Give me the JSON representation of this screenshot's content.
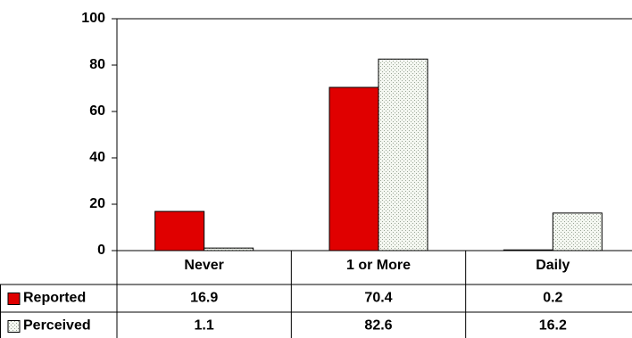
{
  "chart_data": {
    "type": "bar",
    "categories": [
      "Never",
      "1 or More",
      "Daily"
    ],
    "series": [
      {
        "name": "Reported",
        "values": [
          16.9,
          70.4,
          0.2
        ],
        "color": "#e00000",
        "pattern": "solid"
      },
      {
        "name": "Perceived",
        "values": [
          1.1,
          82.6,
          16.2
        ],
        "color": "#eef2ea",
        "pattern": "stipple"
      }
    ],
    "ylim": [
      0,
      100
    ],
    "yticks": [
      0,
      20,
      40,
      60,
      80,
      100
    ],
    "grid": false,
    "legend": "data-table",
    "data_table": true
  }
}
